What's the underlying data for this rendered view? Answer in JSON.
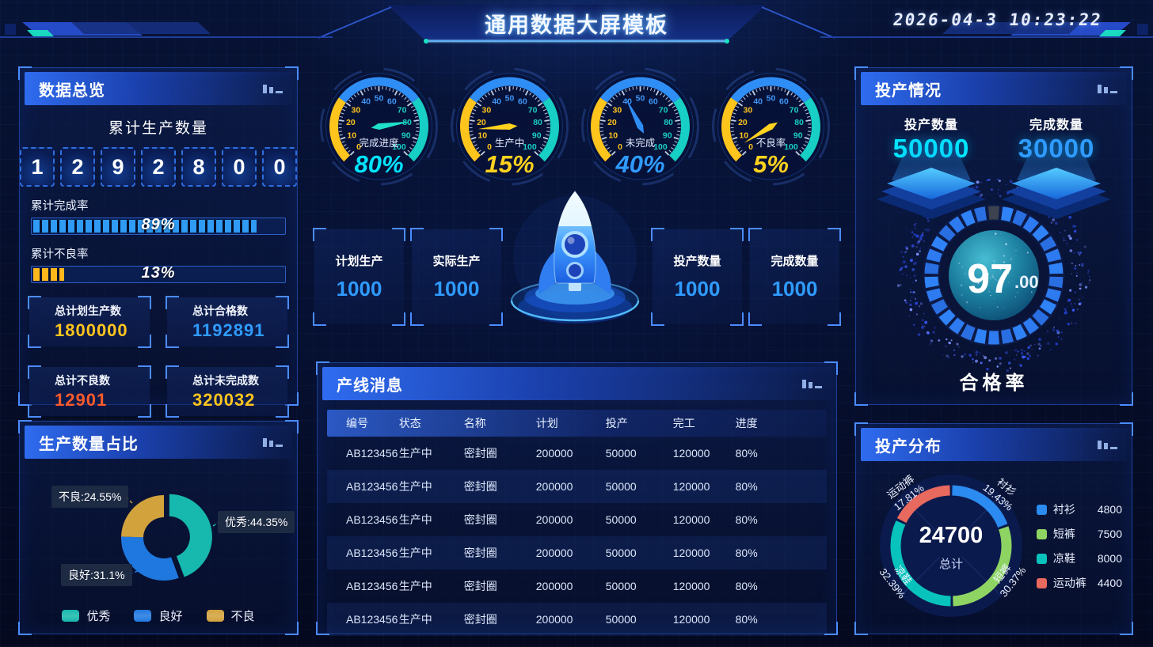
{
  "header": {
    "title": "通用数据大屏模板",
    "datetime": "2026-04-3  10:23:22"
  },
  "overview": {
    "title": "数据总览",
    "counter_label": "累计生产数量",
    "counter_digits": [
      "1",
      "2",
      "9",
      "2",
      "8",
      "0",
      "0"
    ],
    "bars": [
      {
        "label": "累计完成率",
        "percent": 89,
        "text": "89%",
        "color": "#2f9bf5"
      },
      {
        "label": "累计不良率",
        "percent": 13,
        "text": "13%",
        "color": "#ffb81c"
      }
    ],
    "stats": [
      {
        "label": "总计划生产数",
        "value": "1800000",
        "color": "#ffc51d"
      },
      {
        "label": "总计合格数",
        "value": "1192891",
        "color": "#2f9bff"
      },
      {
        "label": "总计不良数",
        "value": "12901",
        "color": "#ff5a2b"
      },
      {
        "label": "总计未完成数",
        "value": "320032",
        "color": "#ffc51d"
      }
    ]
  },
  "gauges": {
    "bands": [
      {
        "to": 30,
        "color": "#ffc51d"
      },
      {
        "to": 70,
        "color": "#2f8ef5"
      },
      {
        "to": 100,
        "color": "#17cfc4"
      }
    ],
    "items": [
      {
        "label": "完成进度",
        "value": 80,
        "text": "80%",
        "needle": "#1fe0c8",
        "valueColor": "#00e4ff"
      },
      {
        "label": "生产中",
        "value": 15,
        "text": "15%",
        "needle": "#ffd21e",
        "valueColor": "#ffd21e"
      },
      {
        "label": "未完成",
        "value": 40,
        "text": "40%",
        "needle": "#2f8ef5",
        "valueColor": "#2f9bff"
      },
      {
        "label": "不良率",
        "value": 5,
        "text": "5%",
        "needle": "#ffd21e",
        "valueColor": "#ffd21e"
      }
    ]
  },
  "center_stats": [
    {
      "label": "计划生产",
      "value": "1000"
    },
    {
      "label": "实际生产",
      "value": "1000"
    },
    {
      "label": "投产数量",
      "value": "1000"
    },
    {
      "label": "完成数量",
      "value": "1000"
    }
  ],
  "ratio": {
    "title": "生产数量占比",
    "slices": [
      {
        "name": "优秀",
        "pct": 44.35,
        "label": "优秀:44.35%",
        "color": "#17b8ad"
      },
      {
        "name": "良好",
        "pct": 31.1,
        "label": "良好:31.1%",
        "color": "#1f78e0"
      },
      {
        "name": "不良",
        "pct": 24.55,
        "label": "不良:24.55%",
        "color": "#d2a23d"
      }
    ]
  },
  "messages": {
    "title": "产线消息",
    "columns": [
      "编号",
      "状态",
      "名称",
      "计划",
      "投产",
      "完工",
      "进度"
    ],
    "rows": [
      [
        "AB123456",
        "生产中",
        "密封圈",
        "200000",
        "50000",
        "120000",
        "80%"
      ],
      [
        "AB123456",
        "生产中",
        "密封圈",
        "200000",
        "50000",
        "120000",
        "80%"
      ],
      [
        "AB123456",
        "生产中",
        "密封圈",
        "200000",
        "50000",
        "120000",
        "80%"
      ],
      [
        "AB123456",
        "生产中",
        "密封圈",
        "200000",
        "50000",
        "120000",
        "80%"
      ],
      [
        "AB123456",
        "生产中",
        "密封圈",
        "200000",
        "50000",
        "120000",
        "80%"
      ],
      [
        "AB123456",
        "生产中",
        "密封圈",
        "200000",
        "50000",
        "120000",
        "80%"
      ]
    ]
  },
  "status": {
    "title": "投产情况",
    "metrics": [
      {
        "label": "投产数量",
        "value": "50000",
        "color": "#00e4ff"
      },
      {
        "label": "完成数量",
        "value": "30000",
        "color": "#2f9bff"
      }
    ],
    "pass": {
      "value_int": "97",
      "value_dec": ".00",
      "label": "合格率"
    }
  },
  "distribution": {
    "title": "投产分布",
    "total": "24700",
    "total_label": "总计",
    "slices": [
      {
        "name": "衬衫",
        "value": 4800,
        "pct": "19.43%",
        "color": "#2b8bf0"
      },
      {
        "name": "短裤",
        "value": 7500,
        "pct": "30.37%",
        "color": "#8ed463"
      },
      {
        "name": "凉鞋",
        "value": 8000,
        "pct": "32.39%",
        "color": "#08c3bc"
      },
      {
        "name": "运动裤",
        "value": 4400,
        "pct": "17.81%",
        "color": "#e8695e"
      }
    ]
  },
  "chart_data": [
    {
      "type": "gauge",
      "title": "完成进度",
      "value": 80,
      "unit": "%",
      "range": [
        0,
        100
      ],
      "bands": [
        {
          "to": 30,
          "color": "#ffc51d"
        },
        {
          "to": 70,
          "color": "#2f8ef5"
        },
        {
          "to": 100,
          "color": "#17cfc4"
        }
      ]
    },
    {
      "type": "gauge",
      "title": "生产中",
      "value": 15,
      "unit": "%",
      "range": [
        0,
        100
      ]
    },
    {
      "type": "gauge",
      "title": "未完成",
      "value": 40,
      "unit": "%",
      "range": [
        0,
        100
      ]
    },
    {
      "type": "gauge",
      "title": "不良率",
      "value": 5,
      "unit": "%",
      "range": [
        0,
        100
      ]
    },
    {
      "type": "progress",
      "title": "累计完成率",
      "value": 89,
      "max": 100
    },
    {
      "type": "progress",
      "title": "累计不良率",
      "value": 13,
      "max": 100
    },
    {
      "type": "pie",
      "title": "生产数量占比",
      "categories": [
        "优秀",
        "良好",
        "不良"
      ],
      "values": [
        44.35,
        31.1,
        24.55
      ],
      "unit": "%",
      "legend_position": "bottom"
    },
    {
      "type": "gauge",
      "title": "合格率",
      "value": 97.0,
      "range": [
        0,
        100
      ]
    },
    {
      "type": "pie",
      "title": "投产分布",
      "categories": [
        "衬衫",
        "短裤",
        "凉鞋",
        "运动裤"
      ],
      "values": [
        4800,
        7500,
        8000,
        4400
      ],
      "total": 24700,
      "percentages": [
        "19.43%",
        "30.37%",
        "32.39%",
        "17.81%"
      ],
      "legend_position": "right"
    },
    {
      "type": "table",
      "title": "产线消息",
      "columns": [
        "编号",
        "状态",
        "名称",
        "计划",
        "投产",
        "完工",
        "进度"
      ],
      "rows": [
        [
          "AB123456",
          "生产中",
          "密封圈",
          "200000",
          "50000",
          "120000",
          "80%"
        ]
      ]
    }
  ]
}
